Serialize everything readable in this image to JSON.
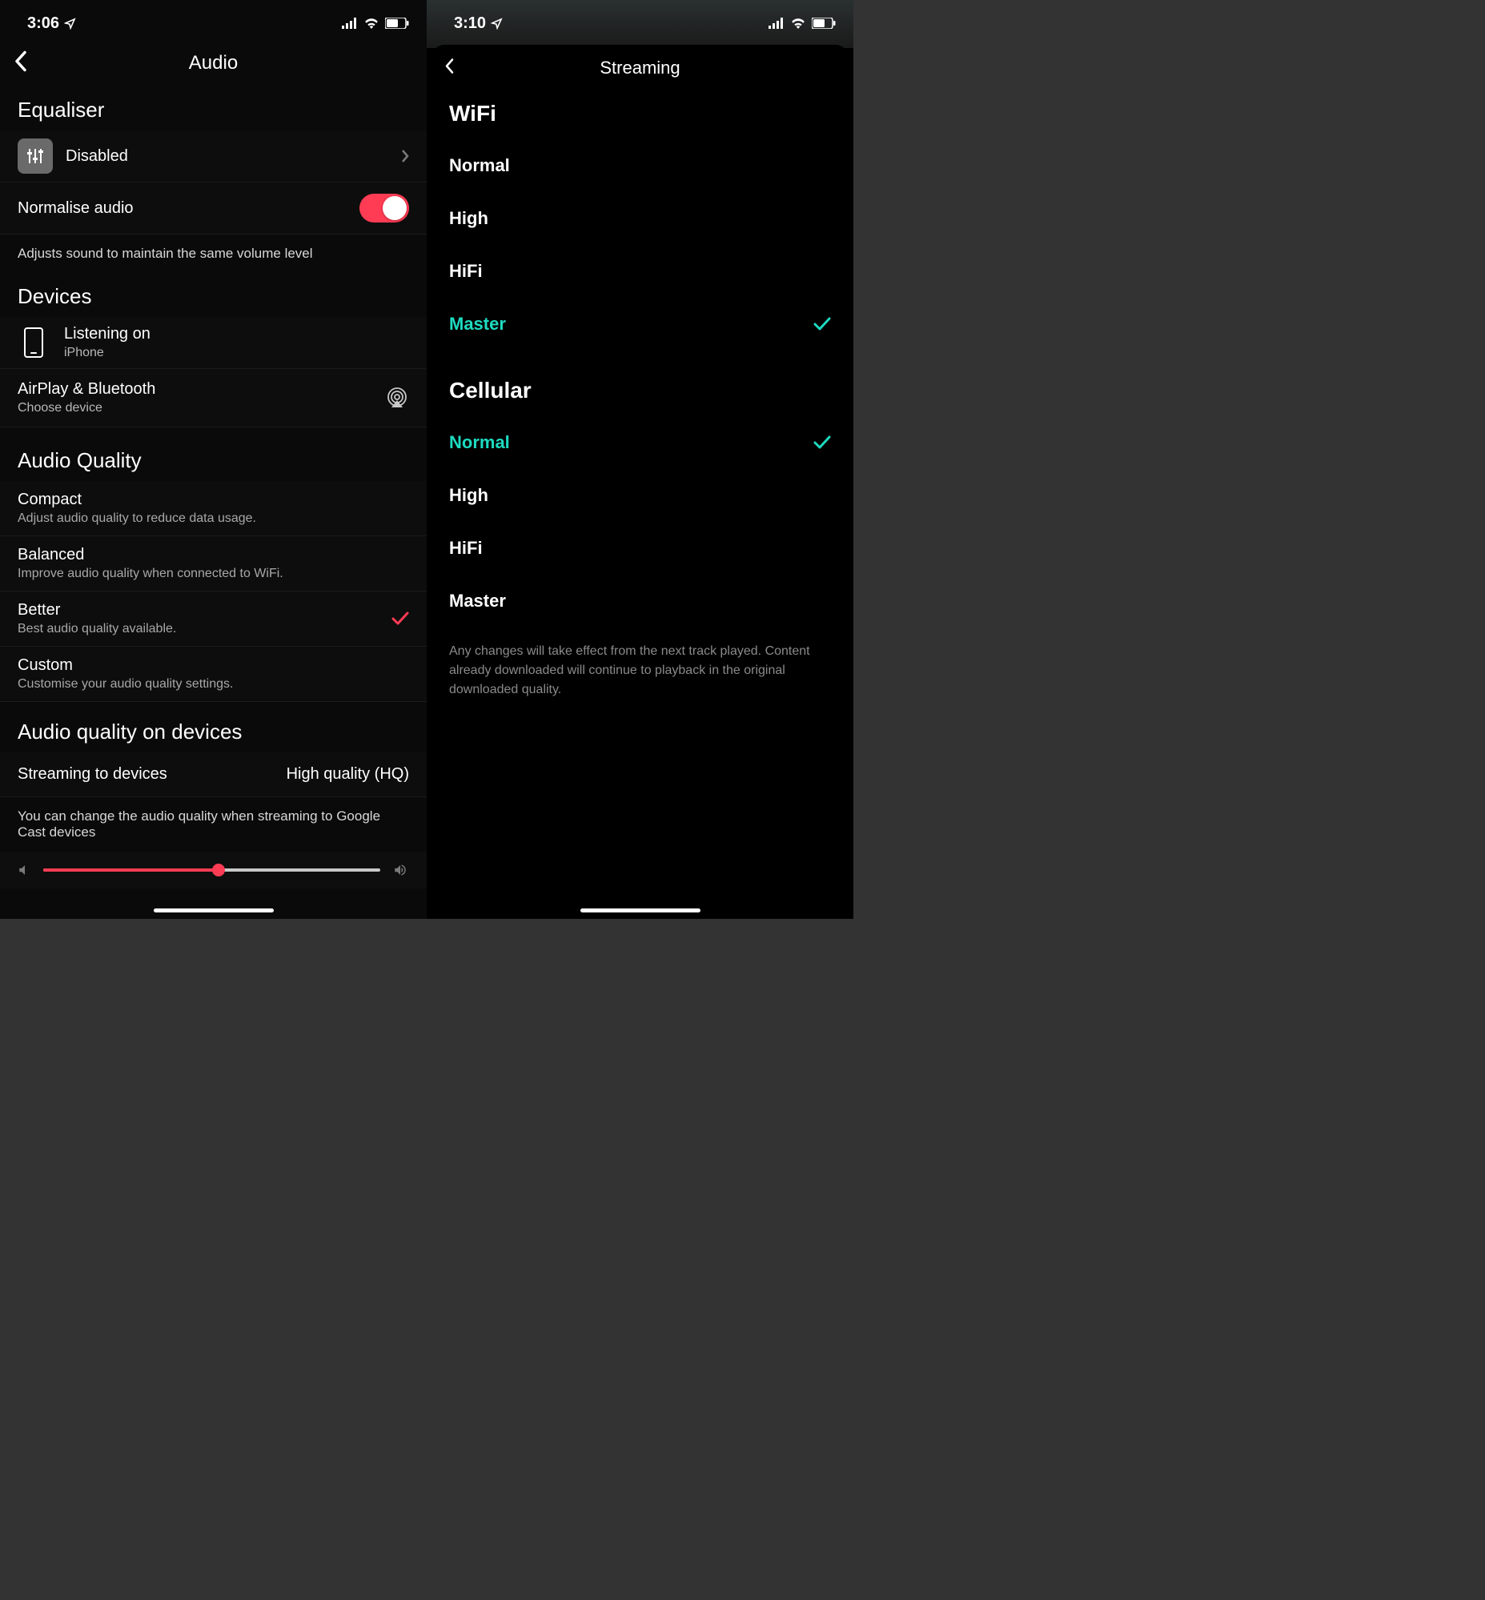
{
  "left": {
    "status": {
      "time": "3:06"
    },
    "header": {
      "title": "Audio"
    },
    "equaliser": {
      "section": "Equaliser",
      "value": "Disabled",
      "normalise_label": "Normalise audio",
      "normalise_note": "Adjusts sound to maintain the same volume level"
    },
    "devices": {
      "section": "Devices",
      "listening_label": "Listening on",
      "listening_device": "iPhone",
      "airplay_label": "AirPlay & Bluetooth",
      "airplay_sub": "Choose device"
    },
    "quality": {
      "section": "Audio Quality",
      "items": [
        {
          "title": "Compact",
          "sub": "Adjust audio quality to reduce data usage.",
          "selected": false
        },
        {
          "title": "Balanced",
          "sub": "Improve audio quality when connected to WiFi.",
          "selected": false
        },
        {
          "title": "Better",
          "sub": "Best audio quality available.",
          "selected": true
        },
        {
          "title": "Custom",
          "sub": "Customise your audio quality settings.",
          "selected": false
        }
      ]
    },
    "devices_quality": {
      "section": "Audio quality on devices",
      "stream_label": "Streaming to devices",
      "stream_value": "High quality (HQ)",
      "note": "You can change the audio quality when streaming to Google Cast devices"
    },
    "colors": {
      "accent": "#ff3c54"
    },
    "slider": {
      "percent": 52
    }
  },
  "right": {
    "status": {
      "time": "3:10"
    },
    "header": {
      "title": "Streaming"
    },
    "wifi": {
      "section": "WiFi",
      "options": [
        {
          "label": "Normal",
          "selected": false
        },
        {
          "label": "High",
          "selected": false
        },
        {
          "label": "HiFi",
          "selected": false
        },
        {
          "label": "Master",
          "selected": true
        }
      ]
    },
    "cellular": {
      "section": "Cellular",
      "options": [
        {
          "label": "Normal",
          "selected": true
        },
        {
          "label": "High",
          "selected": false
        },
        {
          "label": "HiFi",
          "selected": false
        },
        {
          "label": "Master",
          "selected": false
        }
      ]
    },
    "disclaimer": "Any changes will take effect from the next track played. Content already downloaded will continue to playback in the original downloaded quality.",
    "colors": {
      "accent": "#1ddbc0"
    }
  }
}
